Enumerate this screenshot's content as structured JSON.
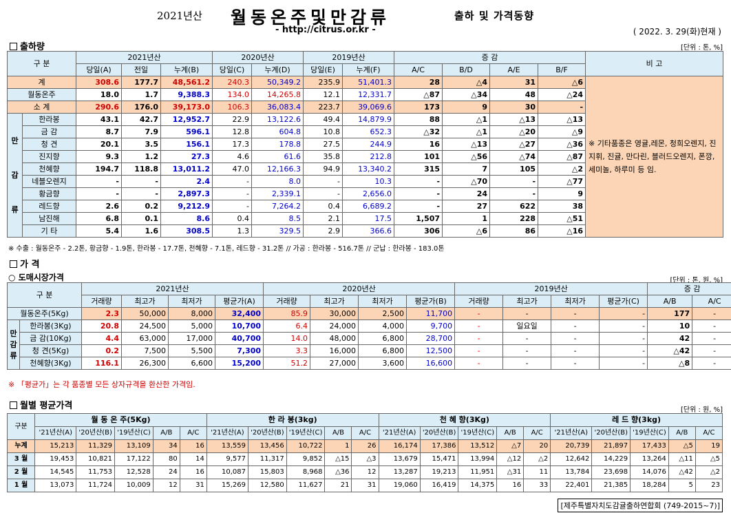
{
  "header": {
    "year_label": "2021년산",
    "title": "월동온주및만감류",
    "subtitle": "출하 및 가격동향",
    "url": "- http://citrus.or.kr -",
    "date": "( 2022. 3. 29(화)현재 )"
  },
  "s1": {
    "title": "출하량",
    "unit": "[단위 : 톤, %]",
    "h_gubun": "구   분",
    "h_2021": "2021년산",
    "h_2020": "2020년산",
    "h_2019": "2019년산",
    "h_inc": "증   감",
    "h_memo": "비 고",
    "sub": [
      "당일(A)",
      "전일",
      "누계(B)",
      "당일(C)",
      "누계(D)",
      "당일(E)",
      "누계(F)",
      "A/C",
      "B/D",
      "A/E",
      "B/F"
    ],
    "side_label": [
      "만",
      "감",
      "류"
    ],
    "rows": [
      {
        "name": "계",
        "v": [
          "308.6",
          "177.7",
          "48,561.2",
          "240.3",
          "50,349.2",
          "235.9",
          "51,401.3",
          "28",
          "△4",
          "31",
          "△6"
        ]
      },
      {
        "name": "월동온주",
        "v": [
          "18.0",
          "1.7",
          "9,388.3",
          "134.0",
          "14,265.8",
          "12.1",
          "12,331.7",
          "△87",
          "△34",
          "48",
          "△24"
        ]
      },
      {
        "name": "소   계",
        "v": [
          "290.6",
          "176.0",
          "39,173.0",
          "106.3",
          "36,083.4",
          "223.7",
          "39,069.6",
          "173",
          "9",
          "30",
          "-"
        ]
      },
      {
        "name": "한라봉",
        "v": [
          "43.1",
          "42.7",
          "12,952.7",
          "22.9",
          "13,122.6",
          "49.4",
          "14,879.9",
          "88",
          "△1",
          "△13",
          "△13"
        ]
      },
      {
        "name": "금   감",
        "v": [
          "8.7",
          "7.9",
          "596.1",
          "12.8",
          "604.8",
          "10.8",
          "652.3",
          "△32",
          "△1",
          "△20",
          "△9"
        ]
      },
      {
        "name": "청   견",
        "v": [
          "20.1",
          "3.5",
          "156.1",
          "17.3",
          "178.8",
          "27.5",
          "244.9",
          "16",
          "△13",
          "△27",
          "△36"
        ]
      },
      {
        "name": "진지향",
        "v": [
          "9.3",
          "1.2",
          "27.3",
          "4.6",
          "61.6",
          "35.8",
          "212.8",
          "101",
          "△56",
          "△74",
          "△87"
        ]
      },
      {
        "name": "천혜향",
        "v": [
          "194.7",
          "118.8",
          "13,011.2",
          "47.0",
          "12,166.3",
          "94.9",
          "13,340.2",
          "315",
          "7",
          "105",
          "△2"
        ]
      },
      {
        "name": "네블오렌지",
        "v": [
          "-",
          "-",
          "2.4",
          "-",
          "8.0",
          "-",
          "10.3",
          "-",
          "△70",
          "-",
          "△77"
        ]
      },
      {
        "name": "황금향",
        "v": [
          "-",
          "-",
          "2,897.3",
          "-",
          "2,339.1",
          "-",
          "2,656.0",
          "-",
          "24",
          "-",
          "9"
        ]
      },
      {
        "name": "레드향",
        "v": [
          "2.6",
          "0.2",
          "9,212.9",
          "-",
          "7,264.2",
          "0.4",
          "6,689.2",
          "-",
          "27",
          "622",
          "38"
        ]
      },
      {
        "name": "남진해",
        "v": [
          "6.8",
          "0.1",
          "8.6",
          "0.4",
          "8.5",
          "2.1",
          "17.5",
          "1,507",
          "1",
          "228",
          "△51"
        ]
      },
      {
        "name": "기   타",
        "v": [
          "5.4",
          "1.6",
          "308.5",
          "1.3",
          "329.5",
          "2.9",
          "366.6",
          "306",
          "△6",
          "86",
          "△16"
        ]
      }
    ],
    "memo": "※ 기타품종은 영귤,레몬, 청희오렌지, 진지휘, 진귤, 만다린, 블러드오렌지, 폰깡,세미놀, 하루미 등 임.",
    "note": "※ 수출 : 월동온주 - 2.2톤, 황금향 - 1.9톤, 한라봉 - 17.7톤, 천혜향 - 7.1톤, 레드향 - 31.2톤 // 가공 : 한라봉 - 516.7톤 // 군납 : 한라봉 - 183.0톤"
  },
  "s2": {
    "title": "가   격",
    "sub_title": "○ 도매시장가격",
    "unit": "[단위 : 톤, 원, %]",
    "h_gubun": "구   분",
    "h_2021": "2021년산",
    "h_2020": "2020년산",
    "h_2019": "2019년산",
    "h_inc": "증   감",
    "sub": [
      "거래량",
      "최고가",
      "최저가",
      "평균가(A)",
      "거래량",
      "최고가",
      "최저가",
      "평균가(B)",
      "거래량",
      "최고가",
      "최저가",
      "평균가(C)",
      "A/B",
      "A/C"
    ],
    "side_label": [
      "만",
      "감",
      "류"
    ],
    "rows": [
      {
        "name": "월동온주(5Kg)",
        "v": [
          "2.3",
          "50,000",
          "8,000",
          "32,400",
          "85.9",
          "30,000",
          "2,500",
          "11,700",
          "-",
          "-",
          "-",
          "-",
          "177",
          "-"
        ]
      },
      {
        "name": "한라봉(3Kg)",
        "v": [
          "20.8",
          "24,500",
          "5,000",
          "10,700",
          "6.4",
          "24,000",
          "4,000",
          "9,700",
          "-",
          "일요일",
          "-",
          "-",
          "10",
          "-"
        ]
      },
      {
        "name": "금 감(10Kg)",
        "v": [
          "4.4",
          "63,000",
          "17,000",
          "40,700",
          "14.0",
          "48,000",
          "6,800",
          "28,700",
          "-",
          "-",
          "-",
          "-",
          "42",
          "-"
        ]
      },
      {
        "name": "청  견(5Kg)",
        "v": [
          "0.2",
          "7,500",
          "5,500",
          "7,300",
          "3.3",
          "16,000",
          "6,800",
          "12,500",
          "-",
          "-",
          "-",
          "-",
          "△42",
          "-"
        ]
      },
      {
        "name": "천혜향(3Kg)",
        "v": [
          "116.1",
          "26,300",
          "6,600",
          "15,200",
          "51.2",
          "27,000",
          "3,600",
          "16,600",
          "-",
          "-",
          "-",
          "-",
          "△8",
          "-"
        ]
      }
    ],
    "note": "※ 「평균가」는 각 품종별 모든 상자규격을 환산한 가격임."
  },
  "s3": {
    "title": "월별 평균가격",
    "unit": "[단위 : 원, %]",
    "h_gubun": "구분",
    "groups": [
      "월 동 온 주(5Kg)",
      "한 라 봉(3kg)",
      "천 혜 향(3Kg)",
      "레 드 향(3kg)"
    ],
    "sub": [
      "'21년산(A)",
      "'20년산(B)",
      "'19년산(C)",
      "A/B",
      "A/C"
    ],
    "rows": [
      {
        "name": "누계",
        "v": [
          "15,213",
          "11,329",
          "13,109",
          "34",
          "16",
          "13,559",
          "13,456",
          "10,722",
          "1",
          "26",
          "16,174",
          "17,386",
          "13,512",
          "△7",
          "20",
          "20,739",
          "21,897",
          "17,433",
          "△5",
          "19"
        ]
      },
      {
        "name": "3 월",
        "v": [
          "19,453",
          "10,821",
          "17,122",
          "80",
          "14",
          "9,577",
          "11,317",
          "9,852",
          "△15",
          "△3",
          "13,679",
          "15,471",
          "13,994",
          "△12",
          "△2",
          "12,642",
          "14,229",
          "13,264",
          "△11",
          "△5"
        ]
      },
      {
        "name": "2 월",
        "v": [
          "14,545",
          "11,753",
          "12,528",
          "24",
          "16",
          "10,087",
          "15,803",
          "8,968",
          "△36",
          "12",
          "13,287",
          "19,213",
          "11,951",
          "△31",
          "11",
          "13,784",
          "23,698",
          "14,076",
          "△42",
          "△2"
        ]
      },
      {
        "name": "1 월",
        "v": [
          "13,073",
          "11,724",
          "10,009",
          "12",
          "31",
          "15,269",
          "12,580",
          "11,627",
          "21",
          "31",
          "19,060",
          "16,419",
          "14,375",
          "16",
          "33",
          "22,401",
          "21,385",
          "18,284",
          "5",
          "23"
        ]
      }
    ]
  },
  "footer": "[제주특별자치도감귤출하연합회 (749-2015~7)]"
}
